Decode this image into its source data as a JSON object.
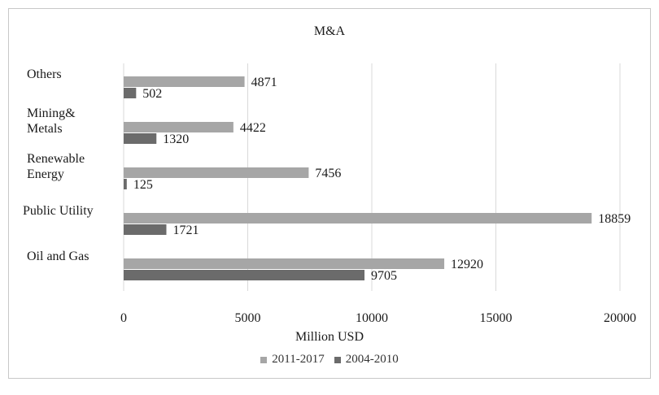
{
  "chart_data": {
    "type": "bar",
    "orientation": "horizontal",
    "title": "M&A",
    "xlabel": "Million USD",
    "ylabel": "",
    "xlim": [
      0,
      20000
    ],
    "xticks": [
      "0",
      "5000",
      "10000",
      "15000",
      "20000"
    ],
    "grid": "vertical",
    "legend_position": "bottom",
    "categories": [
      "Others",
      "Mining&\nMetals",
      "Renewable\nEnergy",
      "Public Utility",
      "Oil and Gas"
    ],
    "series": [
      {
        "name": "2011-2017",
        "values": [
          4871,
          4422,
          7456,
          18859,
          12920
        ],
        "color": "#a6a6a6"
      },
      {
        "name": "2004-2010",
        "values": [
          502,
          1320,
          125,
          1721,
          9705
        ],
        "color": "#6b6b6b"
      }
    ]
  }
}
